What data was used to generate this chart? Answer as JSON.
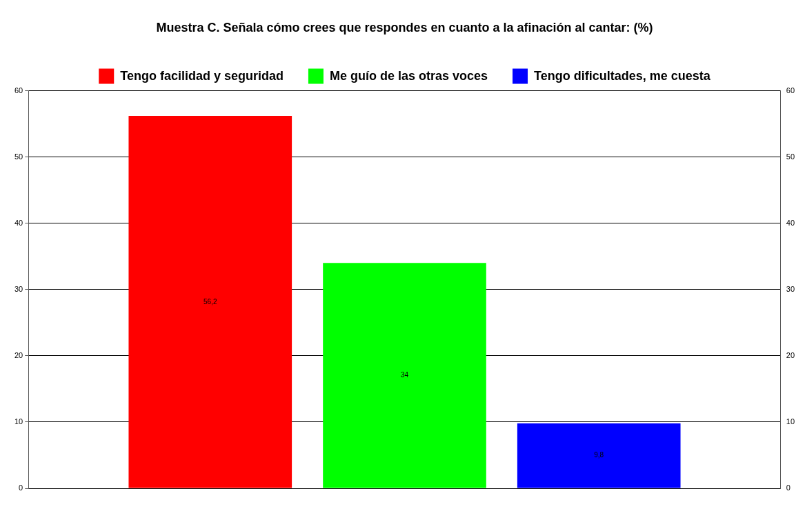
{
  "chart_data": {
    "type": "bar",
    "title": "Muestra C. Señala cómo crees que respondes en cuanto a la afinación al cantar: (%)",
    "categories": [
      null
    ],
    "series": [
      {
        "name": "Tengo facilidad y seguridad",
        "color": "#ff0000",
        "values": [
          56.2
        ],
        "value_labels": [
          "56,2"
        ]
      },
      {
        "name": "Me guío de las otras voces",
        "color": "#00ff00",
        "values": [
          34
        ],
        "value_labels": [
          "34"
        ]
      },
      {
        "name": "Tengo dificultades, me cuesta",
        "color": "#0000ff",
        "values": [
          9.8
        ],
        "value_labels": [
          "9,8"
        ]
      }
    ],
    "ylim": [
      0,
      60
    ],
    "yticks": [
      0,
      10,
      20,
      30,
      40,
      50,
      60
    ],
    "y2lim": [
      0,
      60
    ],
    "y2ticks": [
      0,
      10,
      20,
      30,
      40,
      50,
      60
    ],
    "grid": "y",
    "legend": "top"
  }
}
